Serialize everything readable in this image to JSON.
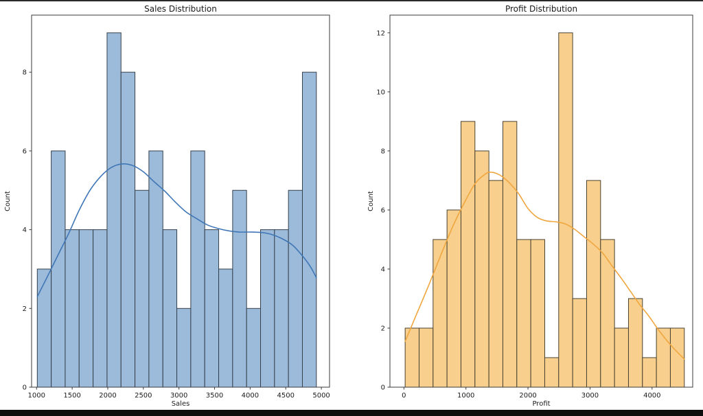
{
  "figure": {
    "background": "#ffffff",
    "top_border_color": "#2a2a2a",
    "bottom_border_color": "#0d0d0d"
  },
  "chart_data": [
    {
      "id": "sales",
      "type": "bar",
      "subtype": "histogram_with_kde",
      "title": "Sales Distribution",
      "xlabel": "Sales",
      "ylabel": "Count",
      "bin_start": 1010,
      "bin_width": 196,
      "counts": [
        3,
        6,
        4,
        4,
        4,
        9,
        8,
        5,
        6,
        4,
        2,
        6,
        4,
        3,
        5,
        2,
        4,
        4,
        5,
        8
      ],
      "x_ticks": [
        1000,
        1500,
        2000,
        2500,
        3000,
        3500,
        4000,
        4500,
        5000
      ],
      "y_ticks": [
        0,
        2,
        4,
        6,
        8
      ],
      "xlim": [
        930,
        5115
      ],
      "ylim": [
        0,
        9.45
      ],
      "grid": false,
      "legend": "none",
      "bar_fill": "#9cbad9",
      "bar_edge": "#343f4b",
      "line_color": "#3f76b5",
      "kde": [
        [
          1010,
          2.3
        ],
        [
          1150,
          2.8
        ],
        [
          1300,
          3.35
        ],
        [
          1450,
          3.9
        ],
        [
          1600,
          4.5
        ],
        [
          1750,
          5.0
        ],
        [
          1900,
          5.35
        ],
        [
          2050,
          5.58
        ],
        [
          2200,
          5.67
        ],
        [
          2350,
          5.63
        ],
        [
          2500,
          5.47
        ],
        [
          2650,
          5.22
        ],
        [
          2800,
          4.98
        ],
        [
          2950,
          4.7
        ],
        [
          3100,
          4.45
        ],
        [
          3250,
          4.28
        ],
        [
          3400,
          4.12
        ],
        [
          3550,
          4.03
        ],
        [
          3700,
          3.97
        ],
        [
          3850,
          3.94
        ],
        [
          4000,
          3.94
        ],
        [
          4150,
          3.93
        ],
        [
          4300,
          3.88
        ],
        [
          4450,
          3.77
        ],
        [
          4600,
          3.6
        ],
        [
          4750,
          3.3
        ],
        [
          4850,
          3.05
        ],
        [
          4930,
          2.78
        ]
      ]
    },
    {
      "id": "profit",
      "type": "bar",
      "subtype": "histogram_with_kde",
      "title": "Profit Distribution",
      "xlabel": "Profit",
      "ylabel": "Count",
      "bin_start": 20,
      "bin_width": 225,
      "counts": [
        2,
        2,
        5,
        6,
        9,
        8,
        7,
        9,
        5,
        5,
        1,
        12,
        3,
        7,
        5,
        2,
        3,
        1,
        2,
        2
      ],
      "x_ticks": [
        0,
        1000,
        2000,
        3000,
        4000
      ],
      "y_ticks": [
        0,
        2,
        4,
        6,
        8,
        10,
        12
      ],
      "xlim": [
        -225,
        4655
      ],
      "ylim": [
        0,
        12.6
      ],
      "grid": false,
      "legend": "none",
      "bar_fill": "#f8cf8d",
      "bar_edge": "#474130",
      "line_color": "#f0a63e",
      "kde": [
        [
          20,
          1.55
        ],
        [
          200,
          2.45
        ],
        [
          400,
          3.45
        ],
        [
          600,
          4.5
        ],
        [
          800,
          5.5
        ],
        [
          1000,
          6.35
        ],
        [
          1150,
          6.9
        ],
        [
          1300,
          7.2
        ],
        [
          1400,
          7.28
        ],
        [
          1550,
          7.18
        ],
        [
          1700,
          6.92
        ],
        [
          1850,
          6.55
        ],
        [
          2000,
          6.05
        ],
        [
          2150,
          5.75
        ],
        [
          2300,
          5.63
        ],
        [
          2450,
          5.6
        ],
        [
          2600,
          5.53
        ],
        [
          2750,
          5.35
        ],
        [
          2900,
          5.1
        ],
        [
          3050,
          4.85
        ],
        [
          3200,
          4.55
        ],
        [
          3350,
          4.12
        ],
        [
          3500,
          3.7
        ],
        [
          3650,
          3.25
        ],
        [
          3800,
          2.8
        ],
        [
          3950,
          2.4
        ],
        [
          4100,
          1.95
        ],
        [
          4250,
          1.55
        ],
        [
          4400,
          1.2
        ],
        [
          4520,
          0.95
        ]
      ]
    }
  ]
}
